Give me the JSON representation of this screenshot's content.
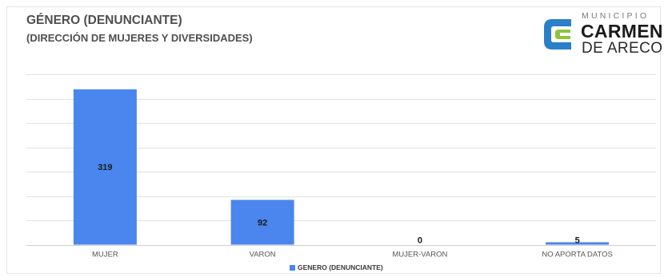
{
  "header": {
    "title": "GÉNERO (DENUNCIANTE)",
    "subtitle": "(DIRECCIÓN DE MUJERES Y DIVERSIDADES)"
  },
  "logo": {
    "small": "MUNICIPIO",
    "main": "CARMEN",
    "sub": "DE ARECO",
    "colors": {
      "blue": "#2a7fc9",
      "green": "#8cc43f"
    }
  },
  "chart_data": {
    "type": "bar",
    "categories": [
      "MUJER",
      "VARON",
      "MUJER-VARON",
      "NO APORTA DATOS"
    ],
    "series": [
      {
        "name": "GENERO (DENUNCIANTE)",
        "values": [
          319,
          92,
          0,
          5
        ],
        "color": "#4a86ed"
      }
    ],
    "ylim": [
      0,
      350
    ],
    "grid": true,
    "legend_position": "bottom"
  }
}
